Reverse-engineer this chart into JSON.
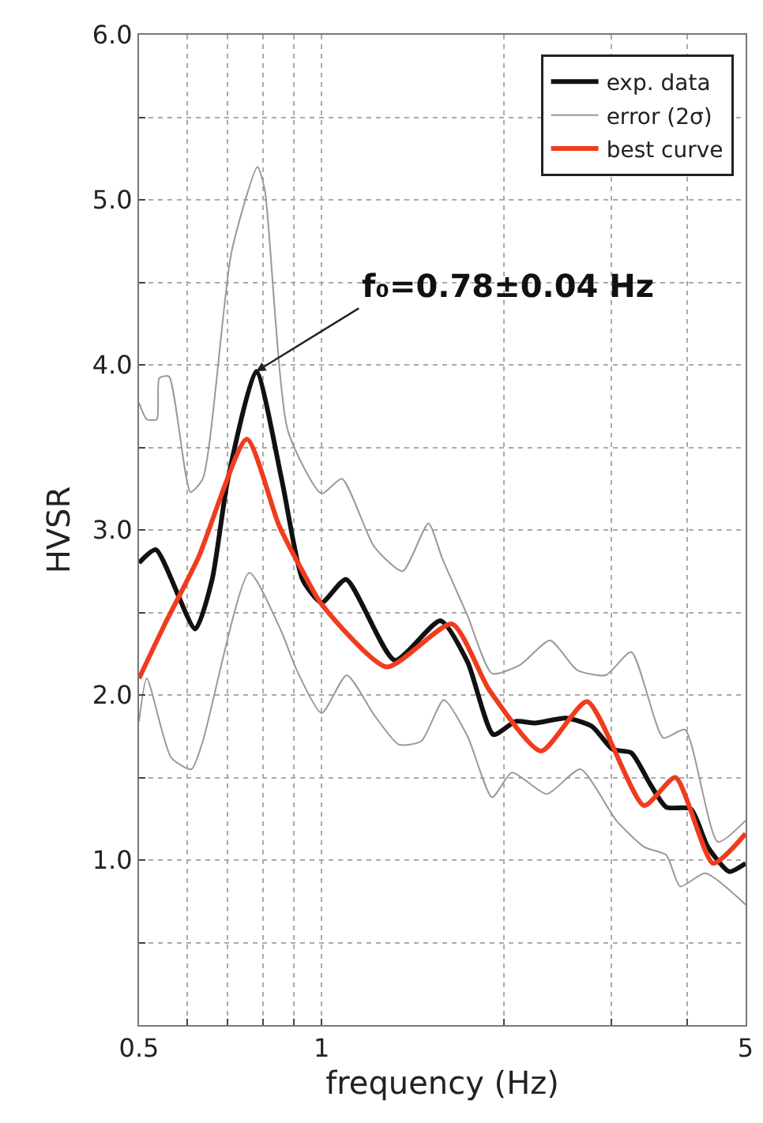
{
  "chart_data": {
    "type": "line",
    "xlabel": "frequency (Hz)",
    "ylabel": "HVSR",
    "log": "x",
    "grid": true,
    "legend": "top right",
    "marker": "none",
    "line_style": "solid",
    "xlim": [
      0.5,
      5
    ],
    "xticks": [
      0.5,
      {
        "value": 0.6,
        "label": null
      },
      {
        "value": 0.7,
        "label": null
      },
      {
        "value": 0.8,
        "label": null
      },
      {
        "value": 0.9,
        "label": null
      },
      1,
      {
        "value": 2,
        "label": null
      },
      {
        "value": 3,
        "label": null
      },
      {
        "value": 4,
        "label": null
      },
      5
    ],
    "ylim": [
      0,
      6
    ],
    "yticks": [
      {
        "value": 0.5,
        "label": null
      },
      {
        "value": 1,
        "label": "1.0"
      },
      {
        "value": 1.5,
        "label": null
      },
      {
        "value": 2,
        "label": "2.0"
      },
      {
        "value": 2.5,
        "label": null
      },
      {
        "value": 3,
        "label": "3.0"
      },
      {
        "value": 3.5,
        "label": null
      },
      {
        "value": 4,
        "label": "4.0"
      },
      {
        "value": 4.5,
        "label": null
      },
      {
        "value": 5,
        "label": "5.0"
      },
      {
        "value": 5.5,
        "label": null
      },
      {
        "value": 6,
        "label": "6.0"
      }
    ],
    "annotations": [
      {
        "text": "f₀=0.78±0.04 Hz",
        "x": 0.78,
        "y": 3.96
      }
    ],
    "series": [
      {
        "name": "exp. data",
        "color": "#111111",
        "x": [
          0.5,
          0.533,
          0.619,
          0.66,
          0.7,
          0.78,
          0.86,
          0.93,
          1.0,
          1.097,
          1.32,
          1.57,
          1.74,
          1.92,
          2.09,
          2.25,
          2.53,
          2.79,
          3.02,
          3.24,
          3.48,
          3.7,
          4.06,
          4.33,
          4.7,
          5.0
        ],
        "values": [
          2.8,
          2.88,
          2.4,
          2.7,
          3.3,
          3.96,
          3.3,
          2.7,
          2.56,
          2.7,
          2.21,
          2.45,
          2.2,
          1.76,
          1.84,
          1.83,
          1.86,
          1.81,
          1.67,
          1.65,
          1.46,
          1.32,
          1.31,
          1.08,
          0.93,
          0.98
        ]
      },
      {
        "name": "error (2σ)",
        "color": "#999999",
        "x": [
          0.5,
          0.515,
          0.535,
          0.54,
          0.56,
          0.608,
          0.637,
          0.71,
          0.784,
          0.806,
          0.88,
          1.0,
          1.08,
          1.22,
          1.36,
          1.5,
          1.58,
          1.74,
          1.91,
          2.12,
          2.38,
          2.64,
          2.94,
          3.24,
          3.66,
          3.97,
          4.5,
          5.0
        ],
        "values": [
          3.77,
          3.67,
          3.67,
          3.92,
          3.93,
          3.23,
          3.31,
          4.68,
          5.2,
          5.06,
          3.6,
          3.22,
          3.31,
          2.9,
          2.75,
          3.04,
          2.83,
          2.48,
          2.13,
          2.18,
          2.33,
          2.15,
          2.12,
          2.26,
          1.74,
          1.79,
          1.11,
          1.24
        ]
      },
      {
        "color": "#999999",
        "x": [
          0.5,
          0.515,
          0.565,
          0.61,
          0.637,
          0.76,
          0.857,
          0.91,
          1.0,
          1.1,
          1.22,
          1.34,
          1.46,
          1.59,
          1.74,
          1.91,
          2.06,
          2.35,
          2.67,
          3.06,
          3.4,
          3.7,
          3.9,
          4.29,
          5.0
        ],
        "values": [
          1.84,
          2.1,
          1.62,
          1.55,
          1.72,
          2.74,
          2.39,
          2.15,
          1.89,
          2.12,
          1.88,
          1.7,
          1.72,
          1.97,
          1.75,
          1.38,
          1.53,
          1.4,
          1.55,
          1.24,
          1.08,
          1.03,
          0.84,
          0.92,
          0.73
        ]
      },
      {
        "name": "best curve",
        "color": "#f03c1e",
        "x": [
          0.5,
          0.55,
          0.626,
          0.753,
          0.85,
          0.93,
          1.0,
          1.28,
          1.64,
          1.89,
          2.3,
          2.74,
          3.4,
          3.83,
          4.42,
          5.0
        ],
        "values": [
          2.1,
          2.42,
          2.83,
          3.55,
          3.03,
          2.75,
          2.55,
          2.17,
          2.43,
          2.03,
          1.66,
          1.96,
          1.33,
          1.5,
          0.98,
          1.16
        ]
      }
    ]
  }
}
